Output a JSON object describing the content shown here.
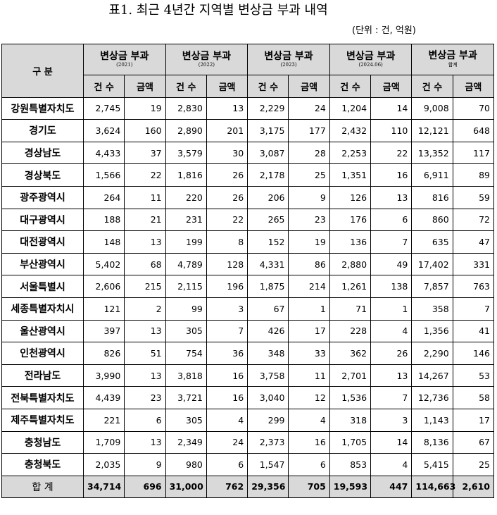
{
  "title": "표1. 최근 4년간 지역별 변상금 부과 내역",
  "unit": "(단위 : 건, 억원)",
  "table": {
    "corner": "구 분",
    "groups": [
      {
        "label": "변상금 부과",
        "sub": "(2021)"
      },
      {
        "label": "변상금 부과",
        "sub": "(2022)"
      },
      {
        "label": "변상금 부과",
        "sub": "(2023)"
      },
      {
        "label": "변상금 부과",
        "sub": "(2024.06)"
      },
      {
        "label": "변상금 부과",
        "sub": "합계"
      }
    ],
    "columns": [
      "건 수",
      "금액",
      "건 수",
      "금액",
      "건 수",
      "금액",
      "건 수",
      "금액",
      "건 수",
      "금액"
    ],
    "rows": [
      [
        "강원특별자치도",
        "2,745",
        "19",
        "2,830",
        "13",
        "2,229",
        "24",
        "1,204",
        "14",
        "9,008",
        "70"
      ],
      [
        "경기도",
        "3,624",
        "160",
        "2,890",
        "201",
        "3,175",
        "177",
        "2,432",
        "110",
        "12,121",
        "648"
      ],
      [
        "경상남도",
        "4,433",
        "37",
        "3,579",
        "30",
        "3,087",
        "28",
        "2,253",
        "22",
        "13,352",
        "117"
      ],
      [
        "경상북도",
        "1,566",
        "22",
        "1,816",
        "26",
        "2,178",
        "25",
        "1,351",
        "16",
        "6,911",
        "89"
      ],
      [
        "광주광역시",
        "264",
        "11",
        "220",
        "26",
        "206",
        "9",
        "126",
        "13",
        "816",
        "59"
      ],
      [
        "대구광역시",
        "188",
        "21",
        "231",
        "22",
        "265",
        "23",
        "176",
        "6",
        "860",
        "72"
      ],
      [
        "대전광역시",
        "148",
        "13",
        "199",
        "8",
        "152",
        "19",
        "136",
        "7",
        "635",
        "47"
      ],
      [
        "부산광역시",
        "5,402",
        "68",
        "4,789",
        "128",
        "4,331",
        "86",
        "2,880",
        "49",
        "17,402",
        "331"
      ],
      [
        "서울특별시",
        "2,606",
        "215",
        "2,115",
        "196",
        "1,875",
        "214",
        "1,261",
        "138",
        "7,857",
        "763"
      ],
      [
        "세종특별자치시",
        "121",
        "2",
        "99",
        "3",
        "67",
        "1",
        "71",
        "1",
        "358",
        "7"
      ],
      [
        "울산광역시",
        "397",
        "13",
        "305",
        "7",
        "426",
        "17",
        "228",
        "4",
        "1,356",
        "41"
      ],
      [
        "인천광역시",
        "826",
        "51",
        "754",
        "36",
        "348",
        "33",
        "362",
        "26",
        "2,290",
        "146"
      ],
      [
        "전라남도",
        "3,990",
        "13",
        "3,818",
        "16",
        "3,758",
        "11",
        "2,701",
        "13",
        "14,267",
        "53"
      ],
      [
        "전북특별자치도",
        "4,439",
        "23",
        "3,721",
        "16",
        "3,040",
        "12",
        "1,536",
        "7",
        "12,736",
        "58"
      ],
      [
        "제주특별자치도",
        "221",
        "6",
        "305",
        "4",
        "299",
        "4",
        "318",
        "3",
        "1,143",
        "17"
      ],
      [
        "충청남도",
        "1,709",
        "13",
        "2,349",
        "24",
        "2,373",
        "16",
        "1,705",
        "14",
        "8,136",
        "67"
      ],
      [
        "충청북도",
        "2,035",
        "9",
        "980",
        "6",
        "1,547",
        "6",
        "853",
        "4",
        "5,415",
        "25"
      ]
    ],
    "total": [
      "합 계",
      "34,714",
      "696",
      "31,000",
      "762",
      "29,356",
      "705",
      "19,593",
      "447",
      "114,663",
      "2,610"
    ]
  }
}
